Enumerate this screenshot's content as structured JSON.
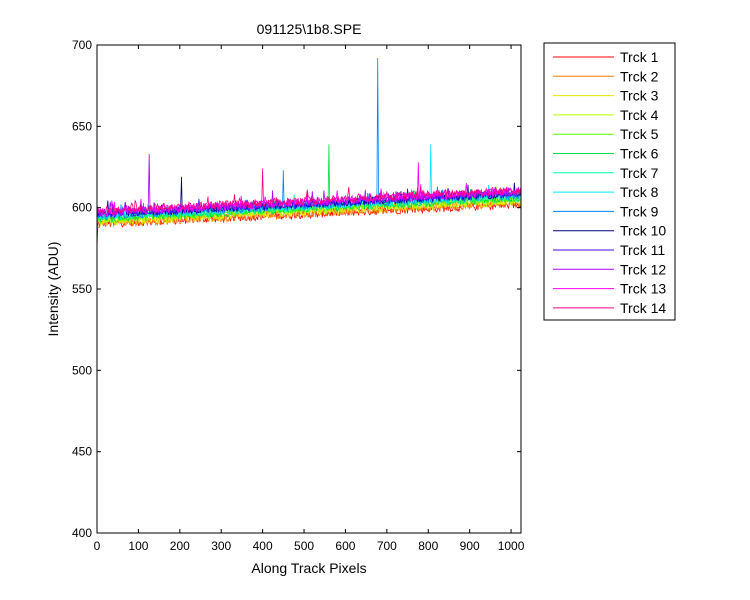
{
  "chart_data": {
    "type": "line",
    "title": "091125\\1b8.SPE",
    "xlabel": "Along Track Pixels",
    "ylabel": "Intensity (ADU)",
    "xlim": [
      0,
      1024
    ],
    "ylim": [
      400,
      700
    ],
    "xticks": [
      0,
      100,
      200,
      300,
      400,
      500,
      600,
      700,
      800,
      900,
      1000
    ],
    "yticks": [
      400,
      450,
      500,
      550,
      600,
      650,
      700
    ],
    "grid": false,
    "legend_position": "outside-right",
    "series": [
      {
        "name": "Trck 1",
        "color": "#ff0000",
        "start": 590,
        "end": 602,
        "spikes": [
          [
            0,
            575
          ]
        ]
      },
      {
        "name": "Trck 2",
        "color": "#ff7a00",
        "start": 590,
        "end": 603,
        "spikes": []
      },
      {
        "name": "Trck 3",
        "color": "#e6e600",
        "start": 591,
        "end": 604,
        "spikes": []
      },
      {
        "name": "Trck 4",
        "color": "#b4ff00",
        "start": 592,
        "end": 605,
        "spikes": []
      },
      {
        "name": "Trck 5",
        "color": "#55ff00",
        "start": 593,
        "end": 606,
        "spikes": []
      },
      {
        "name": "Trck 6",
        "color": "#00e040",
        "start": 593,
        "end": 606,
        "spikes": [
          [
            560,
            639
          ]
        ]
      },
      {
        "name": "Trck 7",
        "color": "#00ffaa",
        "start": 594,
        "end": 607,
        "spikes": []
      },
      {
        "name": "Trck 8",
        "color": "#00e5ff",
        "start": 595,
        "end": 608,
        "spikes": [
          [
            805,
            639
          ]
        ]
      },
      {
        "name": "Trck 9",
        "color": "#0088ff",
        "start": 595,
        "end": 608,
        "spikes": [
          [
            678,
            692
          ],
          [
            450,
            623
          ]
        ]
      },
      {
        "name": "Trck 10",
        "color": "#000080",
        "start": 596,
        "end": 609,
        "spikes": [
          [
            203,
            619
          ]
        ]
      },
      {
        "name": "Trck 11",
        "color": "#4000ff",
        "start": 596,
        "end": 609,
        "spikes": []
      },
      {
        "name": "Trck 12",
        "color": "#b000ff",
        "start": 597,
        "end": 610,
        "spikes": [
          [
            125,
            633
          ]
        ]
      },
      {
        "name": "Trck 13",
        "color": "#ff00ff",
        "start": 597,
        "end": 610,
        "spikes": [
          [
            775,
            628
          ]
        ]
      },
      {
        "name": "Trck 14",
        "color": "#ff0080",
        "start": 598,
        "end": 611,
        "spikes": [
          [
            400,
            624
          ]
        ]
      }
    ]
  }
}
